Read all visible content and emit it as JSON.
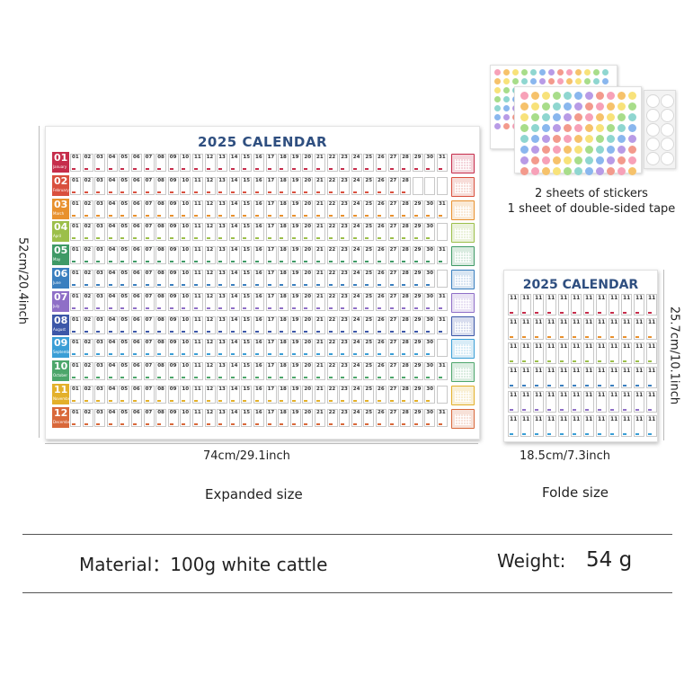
{
  "poster": {
    "title": "2025 CALENDAR",
    "months": [
      {
        "num": "01",
        "name": "January",
        "color": "#c62d4b",
        "days": 31
      },
      {
        "num": "02",
        "name": "February",
        "color": "#d9503e",
        "days": 28
      },
      {
        "num": "03",
        "name": "March",
        "color": "#e8912e",
        "days": 31
      },
      {
        "num": "04",
        "name": "April",
        "color": "#9cbf4a",
        "days": 30
      },
      {
        "num": "05",
        "name": "May",
        "color": "#3f9a66",
        "days": 31
      },
      {
        "num": "06",
        "name": "June",
        "color": "#3a7fbf",
        "days": 30
      },
      {
        "num": "07",
        "name": "July",
        "color": "#8f6fc7",
        "days": 31
      },
      {
        "num": "08",
        "name": "August",
        "color": "#3c57a8",
        "days": 31
      },
      {
        "num": "09",
        "name": "September",
        "color": "#3a9ed6",
        "days": 30
      },
      {
        "num": "10",
        "name": "October",
        "color": "#4da66b",
        "days": 31
      },
      {
        "num": "11",
        "name": "November",
        "color": "#e3b02a",
        "days": 30
      },
      {
        "num": "12",
        "name": "December",
        "color": "#d9683a",
        "days": 31
      }
    ]
  },
  "dimensions": {
    "expanded_height": "52cm/20.4inch",
    "expanded_width": "74cm/29.1inch",
    "folded_height": "25.7cm/10.1inch",
    "folded_width": "18.5cm/7.3inch"
  },
  "stickers": {
    "caption_line1": "2 sheets of stickers",
    "caption_line2": "1 sheet of double-sided tape",
    "palette": [
      "#f7a1b8",
      "#f6c26b",
      "#f8e27a",
      "#a8dd8a",
      "#8fd6d0",
      "#8ab7ee",
      "#b89be6",
      "#f39a8c"
    ]
  },
  "folded": {
    "title": "2025 CALENDAR",
    "cell_label": "11"
  },
  "captions": {
    "expanded": "Expanded size",
    "folded": "Folde size"
  },
  "specs": {
    "material": "Material：100g white cattle",
    "weight_label": "Weight:",
    "weight_value": "54 g"
  }
}
